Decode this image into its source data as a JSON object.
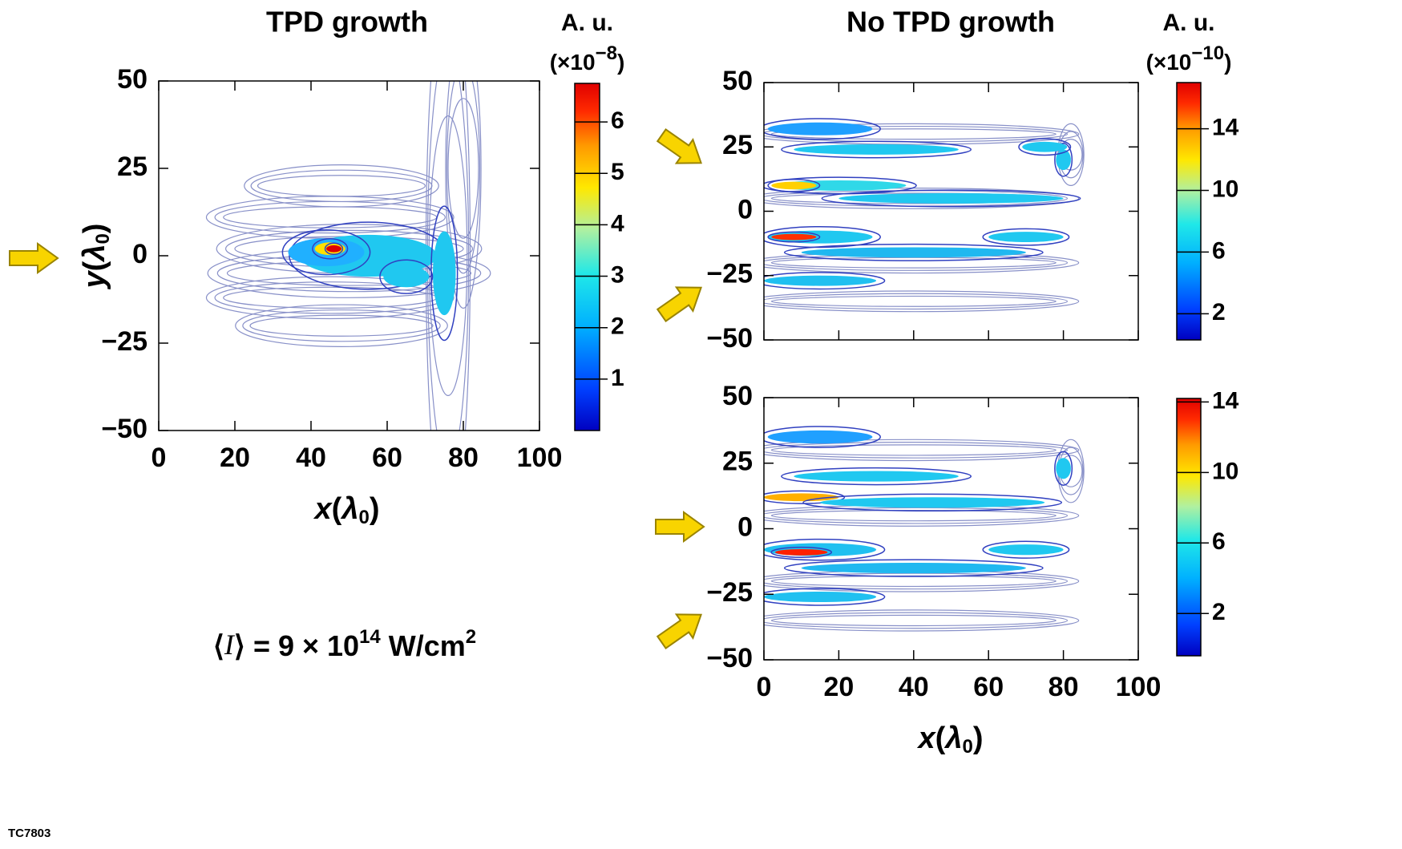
{
  "chart_data": [
    {
      "type": "contour",
      "title": "TPD growth",
      "xlabel": [
        "x",
        "(",
        "λ",
        "0",
        ")"
      ],
      "ylabel": [
        "y",
        "(",
        "λ",
        "0",
        ")"
      ],
      "xlim": [
        0,
        100
      ],
      "ylim": [
        -50,
        50
      ],
      "xticks": [
        0,
        20,
        40,
        60,
        80,
        100
      ],
      "yticks": [
        {
          "value": -50,
          "label": "−50"
        },
        {
          "value": -25,
          "label": "−25"
        },
        0,
        25,
        50
      ],
      "colorbar": {
        "title": "A. u.",
        "multiplier": [
          "(×10",
          "−8",
          ")"
        ],
        "lim": [
          0,
          6.75
        ],
        "ticks": [
          1,
          2,
          3,
          4,
          5,
          6
        ]
      }
    },
    {
      "type": "contour",
      "title": "No TPD growth",
      "show_xtick_labels": false,
      "xlim": [
        0,
        100
      ],
      "ylim": [
        -50,
        50
      ],
      "xticks": [
        0,
        20,
        40,
        60,
        80,
        100
      ],
      "yticks": [
        {
          "value": -50,
          "label": "−50"
        },
        {
          "value": -25,
          "label": "−25"
        },
        0,
        25,
        50
      ],
      "colorbar": {
        "title": "A. u.",
        "multiplier": [
          "(×10",
          "−10",
          ")"
        ],
        "lim": [
          0.3,
          17
        ],
        "ticks": [
          2,
          6,
          10,
          14
        ]
      }
    },
    {
      "type": "contour",
      "xlabel": [
        "x",
        "(",
        "λ",
        "0",
        ")"
      ],
      "xlim": [
        0,
        100
      ],
      "ylim": [
        -50,
        50
      ],
      "xticks": [
        0,
        20,
        40,
        60,
        80,
        100
      ],
      "yticks": [
        {
          "value": -50,
          "label": "−50"
        },
        {
          "value": -25,
          "label": "−25"
        },
        0,
        25,
        50
      ],
      "colorbar": {
        "lim": [
          -0.4,
          14.2
        ],
        "ticks": [
          2,
          6,
          10,
          14
        ]
      }
    }
  ],
  "annotations": {
    "intensity": [
      "⟨",
      "I",
      "⟩ = 9 × 10",
      "14",
      " W/cm",
      "2"
    ],
    "figure_id": "TC7803"
  }
}
